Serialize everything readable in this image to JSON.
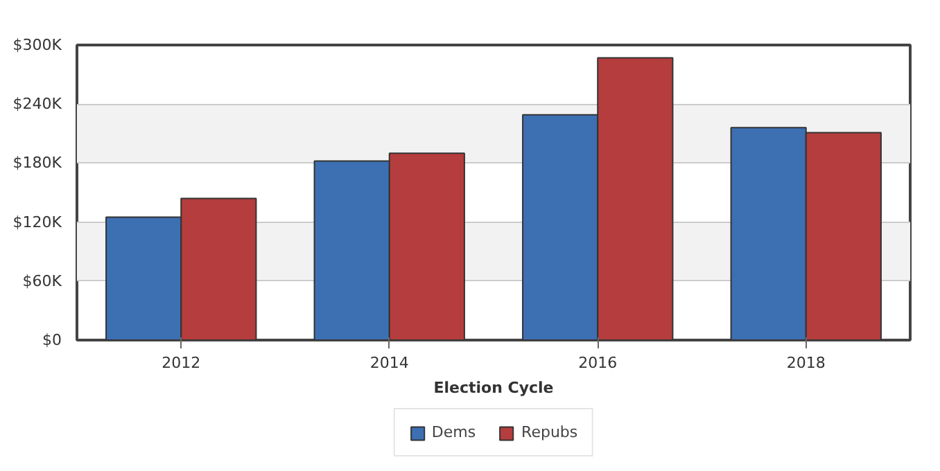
{
  "chart_data": {
    "type": "bar",
    "xlabel": "Election Cycle",
    "categories": [
      "2012",
      "2014",
      "2016",
      "2018"
    ],
    "series": [
      {
        "name": "Dems",
        "color": "#3d70b2",
        "values": [
          125000,
          182000,
          229000,
          216000
        ]
      },
      {
        "name": "Repubs",
        "color": "#b53d3d",
        "values": [
          144000,
          190000,
          287000,
          211000
        ]
      }
    ],
    "ylim": [
      0,
      300000
    ],
    "yticks": [
      {
        "value": 0,
        "label": "$0"
      },
      {
        "value": 60000,
        "label": "$60K"
      },
      {
        "value": 120000,
        "label": "$120K"
      },
      {
        "value": 180000,
        "label": "$180K"
      },
      {
        "value": 240000,
        "label": "$240K"
      },
      {
        "value": 300000,
        "label": "$300K"
      }
    ],
    "grid": "y",
    "legend": "bottom"
  }
}
